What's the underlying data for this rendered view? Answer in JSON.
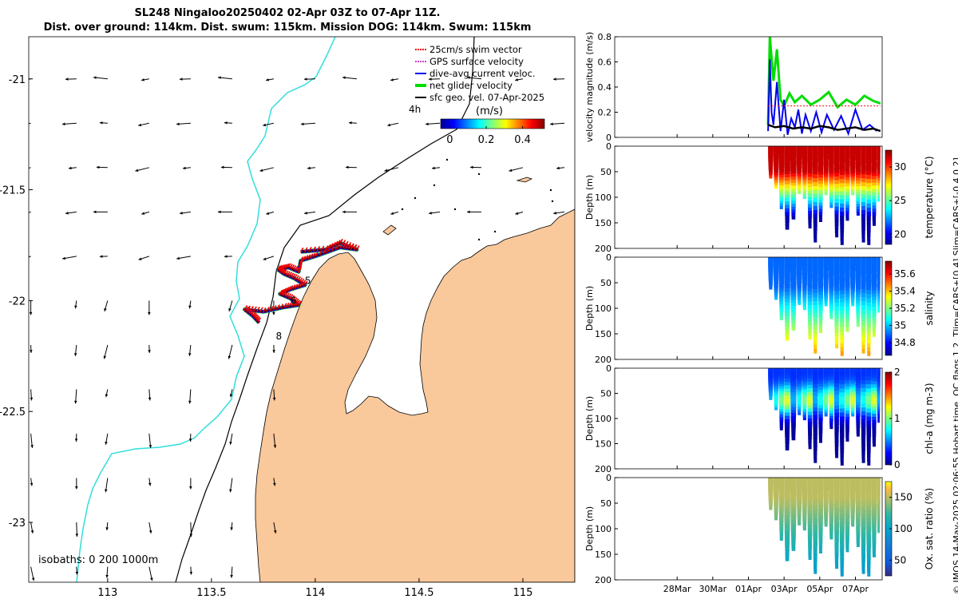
{
  "titles": {
    "line1": "SL248 Ningaloo20250402 02-Apr 03Z to 07-Apr 11Z.",
    "line2": "Dist. over ground: 114km. Dist. swum: 115km. Mission DOG: 114km. Swum: 115km"
  },
  "side_caption": "© IMOS 14-May-2025 02:06:55 Hobart time. QC flags 1 2. Tlim=CARS+[0 4] Slim=CARS+[-0.4 0.2]",
  "colors": {
    "land": "#f9c89b",
    "isobath_200": "#000000",
    "isobath_1000": "#000000",
    "coast_cyan": "#33dddd",
    "swim_vector": "#ee0000",
    "gps_velocity": "#cc44cc",
    "dive_avg": "#0000ee",
    "net_glider": "#00dd00",
    "sfc_geo": "#000000"
  },
  "chart_data": [
    {
      "type": "scatter",
      "name": "map",
      "x_ticks": [
        "113",
        "113.5",
        "114",
        "114.5",
        "115"
      ],
      "x_tick_values": [
        113,
        113.5,
        114,
        114.5,
        115
      ],
      "y_ticks": [
        "-21",
        "-21.5",
        "-22",
        "-22.5",
        "-23"
      ],
      "y_tick_values": [
        -21,
        -21.5,
        -22,
        -22.5,
        -23
      ],
      "xlim": [
        112.62,
        115.25
      ],
      "ylim": [
        -23.27,
        -20.81
      ],
      "legend": [
        {
          "label": "25cm/s swim vector",
          "color_key": "swim_vector"
        },
        {
          "label": "GPS surface velocity",
          "color_key": "gps_velocity"
        },
        {
          "label": "dive-avg current veloc.",
          "color_key": "dive_avg"
        },
        {
          "label": "net glider velocity",
          "color_key": "net_glider"
        },
        {
          "label": "sfc geo. vel. 07-Apr-2025",
          "color_key": "sfc_geo"
        }
      ],
      "vector_label": "4h",
      "colorbar": {
        "label": "(m/s)",
        "ticks": [
          "0",
          "0.2",
          "0.4"
        ],
        "tick_values": [
          0,
          0.2,
          0.4
        ],
        "range": [
          -0.05,
          0.52
        ]
      },
      "isobath_text": "isobaths: 0   200  1000m",
      "track_day_labels": [
        {
          "text": "5",
          "lon": 113.95,
          "lat": -21.91
        },
        {
          "text": "6",
          "lon": 113.88,
          "lat": -22.0
        },
        {
          "text": "8",
          "lon": 113.81,
          "lat": -22.16
        }
      ],
      "track": [
        [
          113.93,
          -21.78
        ],
        [
          114.05,
          -21.77
        ],
        [
          114.12,
          -21.74
        ],
        [
          114.2,
          -21.77
        ],
        [
          114.12,
          -21.76
        ],
        [
          114.0,
          -21.8
        ],
        [
          113.93,
          -21.82
        ],
        [
          113.92,
          -21.87
        ],
        [
          113.87,
          -21.85
        ],
        [
          113.82,
          -21.86
        ],
        [
          113.85,
          -21.88
        ],
        [
          113.9,
          -21.9
        ],
        [
          113.95,
          -21.93
        ],
        [
          113.88,
          -21.95
        ],
        [
          113.83,
          -21.97
        ],
        [
          113.88,
          -21.99
        ],
        [
          113.92,
          -22.02
        ],
        [
          113.85,
          -22.03
        ],
        [
          113.75,
          -22.05
        ],
        [
          113.66,
          -22.04
        ],
        [
          113.7,
          -22.07
        ],
        [
          113.73,
          -22.1
        ]
      ],
      "geo_vectors": {
        "lons": [
          112.63,
          112.85,
          113.0,
          113.2,
          113.4,
          113.6,
          113.8,
          114.0,
          114.2,
          114.4,
          114.6,
          114.8,
          115.0,
          115.2
        ],
        "lats": [
          -21.0,
          -21.2,
          -21.4,
          -21.6,
          -21.8,
          -22.0,
          -22.2,
          -22.4,
          -22.6,
          -22.8,
          -23.0,
          -23.2
        ]
      }
    },
    {
      "type": "line",
      "name": "velocity",
      "ylabel": "velocity magnitude (m/s)",
      "ylim": [
        0,
        0.8
      ],
      "y_ticks": [
        "0",
        "0.2",
        "0.4",
        "0.6",
        "0.8"
      ],
      "y_tick_values": [
        0,
        0.2,
        0.4,
        0.6,
        0.8
      ],
      "xlim_days": [
        -9.5,
        5.5
      ],
      "x_ticks": [
        "28Mar",
        "30Mar",
        "01Apr",
        "03Apr",
        "05Apr",
        "07Apr"
      ],
      "x_tick_values": [
        -6,
        -4,
        -2,
        0,
        2,
        4
      ],
      "series": [
        {
          "color_key": "net_glider",
          "x": [
            -0.9,
            -0.8,
            -0.6,
            -0.4,
            -0.2,
            0.0,
            0.3,
            0.6,
            1.0,
            1.5,
            2.0,
            2.5,
            3.0,
            3.5,
            4.0,
            4.5,
            5.0,
            5.4
          ],
          "y": [
            0.1,
            0.8,
            0.45,
            0.7,
            0.3,
            0.25,
            0.35,
            0.28,
            0.33,
            0.26,
            0.3,
            0.36,
            0.24,
            0.3,
            0.26,
            0.33,
            0.29,
            0.27
          ]
        },
        {
          "color_key": "dive_avg",
          "x": [
            -0.9,
            -0.8,
            -0.7,
            -0.6,
            -0.4,
            -0.2,
            0.0,
            0.2,
            0.4,
            0.6,
            0.8,
            1.0,
            1.2,
            1.5,
            1.8,
            2.1,
            2.4,
            2.8,
            3.2,
            3.6,
            4.0,
            4.4,
            4.8,
            5.2
          ],
          "y": [
            0.05,
            0.62,
            0.2,
            0.1,
            0.44,
            0.05,
            0.3,
            0.02,
            0.15,
            0.08,
            0.22,
            0.03,
            0.18,
            0.05,
            0.2,
            0.04,
            0.18,
            0.06,
            0.17,
            0.03,
            0.22,
            0.06,
            0.1,
            0.05
          ]
        },
        {
          "color_key": "sfc_geo",
          "x": [
            -0.9,
            -0.5,
            0.0,
            0.5,
            1.0,
            1.5,
            2.0,
            2.5,
            3.0,
            3.5,
            4.0,
            4.5,
            5.0,
            5.4
          ],
          "y": [
            0.1,
            0.08,
            0.09,
            0.07,
            0.08,
            0.07,
            0.09,
            0.08,
            0.06,
            0.07,
            0.08,
            0.06,
            0.07,
            0.05
          ]
        },
        {
          "color_key": "swim_vector",
          "x": [
            -0.9,
            5.4
          ],
          "y": [
            0.25,
            0.25
          ]
        }
      ]
    },
    {
      "type": "heatmap",
      "name": "temperature",
      "ylabel": "Depth (m)",
      "colorbar_label": "temperature (°C)",
      "colorbar_ticks": [
        "20",
        "25",
        "30"
      ],
      "colorbar_tick_values": [
        20,
        25,
        30
      ],
      "crange": [
        18.5,
        32.5
      ],
      "y_ticks": [
        "0",
        "50",
        "100",
        "150",
        "200"
      ],
      "y_tick_values": [
        0,
        50,
        100,
        150,
        200
      ],
      "ylim": [
        0,
        200
      ],
      "x_ticks": [],
      "xlim_days": [
        -9.5,
        5.5
      ],
      "profile_days": [
        -0.9,
        -0.6,
        -0.3,
        0.0,
        0.35,
        0.7,
        1.0,
        1.3,
        1.6,
        1.9,
        2.2,
        2.5,
        2.8,
        3.1,
        3.4,
        3.7,
        4.0,
        4.3,
        4.6,
        4.9,
        5.2,
        5.4
      ],
      "max_depth": [
        55,
        70,
        95,
        150,
        175,
        110,
        75,
        130,
        190,
        185,
        110,
        80,
        160,
        195,
        190,
        100,
        90,
        180,
        195,
        190,
        120,
        95
      ],
      "surface_value": 31.5,
      "bottom_value": 19.0,
      "mixed_depth": 50,
      "gradient_depth": 140
    },
    {
      "type": "heatmap",
      "name": "salinity",
      "ylabel": "Depth (m)",
      "colorbar_label": "salinity",
      "colorbar_ticks": [
        "34.8",
        "35",
        "35.2",
        "35.4",
        "35.6"
      ],
      "colorbar_tick_values": [
        34.8,
        35,
        35.2,
        35.4,
        35.6
      ],
      "crange": [
        34.65,
        35.75
      ],
      "y_ticks": [
        "0",
        "50",
        "100",
        "150",
        "200"
      ],
      "y_tick_values": [
        0,
        50,
        100,
        150,
        200
      ],
      "ylim": [
        0,
        200
      ],
      "x_ticks": [],
      "xlim_days": [
        -9.5,
        5.5
      ],
      "profile_days": [
        -0.9,
        -0.6,
        -0.3,
        0.0,
        0.35,
        0.7,
        1.0,
        1.3,
        1.6,
        1.9,
        2.2,
        2.5,
        2.8,
        3.1,
        3.4,
        3.7,
        4.0,
        4.3,
        4.6,
        4.9,
        5.2,
        5.4
      ],
      "max_depth": [
        55,
        70,
        95,
        150,
        175,
        110,
        75,
        130,
        190,
        185,
        110,
        80,
        160,
        195,
        190,
        100,
        90,
        180,
        195,
        190,
        120,
        95
      ],
      "surface_value": 34.9,
      "bottom_value": 35.45,
      "mixed_depth": 60,
      "gradient_depth": 190
    },
    {
      "type": "heatmap",
      "name": "chla",
      "ylabel": "Depth (m)",
      "colorbar_label": "chl-a (mg m-3)",
      "colorbar_ticks": [
        "0",
        "1",
        "2"
      ],
      "colorbar_tick_values": [
        0,
        1,
        2
      ],
      "crange": [
        0,
        2
      ],
      "y_ticks": [
        "0",
        "50",
        "100",
        "150",
        "200"
      ],
      "y_tick_values": [
        0,
        50,
        100,
        150,
        200
      ],
      "ylim": [
        0,
        200
      ],
      "x_ticks": [],
      "xlim_days": [
        -9.5,
        5.5
      ],
      "profile_days": [
        -0.9,
        -0.6,
        -0.3,
        0.0,
        0.35,
        0.7,
        1.0,
        1.3,
        1.6,
        1.9,
        2.2,
        2.5,
        2.8,
        3.1,
        3.4,
        3.7,
        4.0,
        4.3,
        4.6,
        4.9,
        5.2,
        5.4
      ],
      "max_depth": [
        55,
        70,
        95,
        150,
        175,
        110,
        75,
        130,
        190,
        185,
        110,
        80,
        160,
        195,
        190,
        100,
        90,
        180,
        195,
        190,
        120,
        95
      ],
      "surface_value": 0.35,
      "bottom_value": 0.05,
      "peak_value": 0.85,
      "peak_depth": 65
    },
    {
      "type": "heatmap",
      "name": "oxygen",
      "ylabel": "Depth (m)",
      "colorbar_label": "Ox. sat. ratio (%)",
      "colorbar_ticks": [
        "50",
        "100",
        "150"
      ],
      "colorbar_tick_values": [
        50,
        100,
        150
      ],
      "crange": [
        25,
        175
      ],
      "y_ticks": [
        "0",
        "50",
        "100",
        "150",
        "200"
      ],
      "y_tick_values": [
        0,
        50,
        100,
        150,
        200
      ],
      "ylim": [
        0,
        200
      ],
      "x_ticks": [
        "28Mar",
        "30Mar",
        "01Apr",
        "03Apr",
        "05Apr",
        "07Apr"
      ],
      "x_tick_values": [
        -6,
        -4,
        -2,
        0,
        2,
        4
      ],
      "xlim_days": [
        -9.5,
        5.5
      ],
      "profile_days": [
        -0.9,
        -0.6,
        -0.3,
        0.0,
        0.35,
        0.7,
        1.0,
        1.3,
        1.6,
        1.9,
        2.2,
        2.5,
        2.8,
        3.1,
        3.4,
        3.7,
        4.0,
        4.3,
        4.6,
        4.9,
        5.2,
        5.4
      ],
      "max_depth": [
        55,
        70,
        95,
        150,
        175,
        110,
        75,
        130,
        190,
        185,
        110,
        80,
        160,
        195,
        190,
        100,
        90,
        180,
        195,
        190,
        120,
        95
      ],
      "surface_value": 150,
      "bottom_value": 95,
      "mixed_depth": 40,
      "gradient_depth": 180
    }
  ]
}
